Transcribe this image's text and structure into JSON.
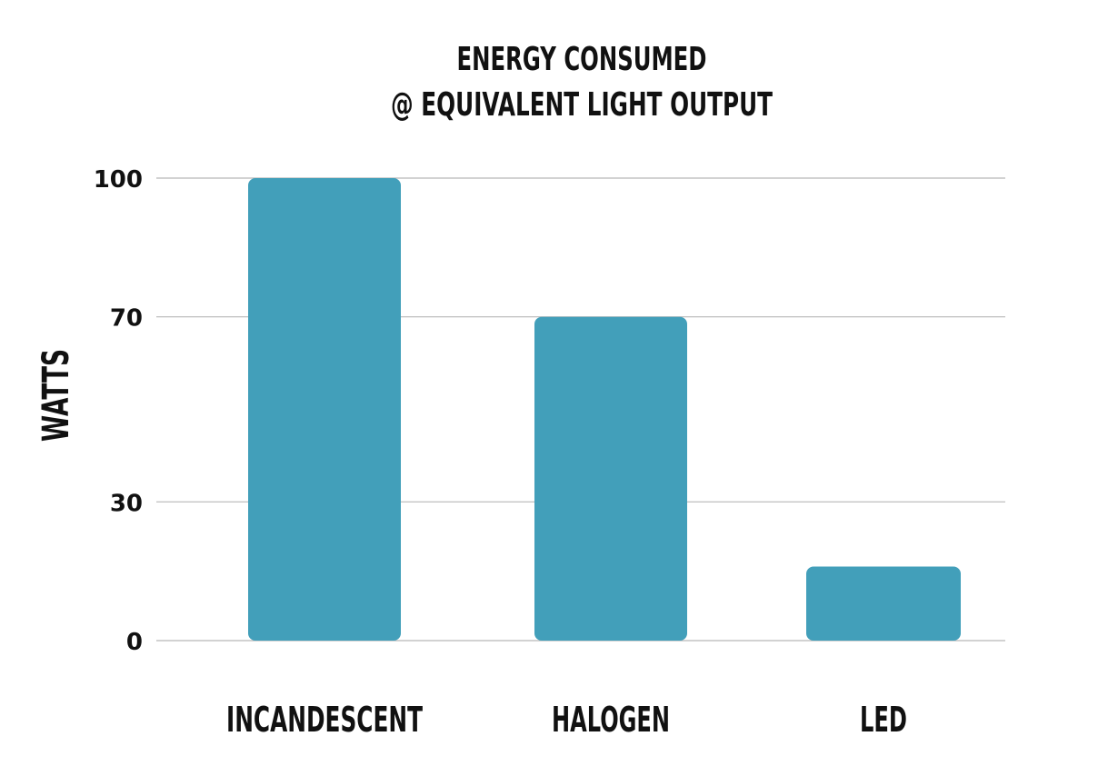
{
  "chart_data": {
    "type": "bar",
    "title": [
      "ENERGY CONSUMED",
      "@ EQUIVALENT LIGHT OUTPUT"
    ],
    "xlabel": "",
    "ylabel": "WATTS",
    "categories": [
      "INCANDESCENT",
      "HALOGEN",
      "LED"
    ],
    "values": [
      100,
      70,
      16
    ],
    "yticks": [
      0,
      30,
      70,
      100
    ],
    "ylim": [
      0,
      100
    ],
    "grid": true,
    "bar_color": "#429fba"
  }
}
